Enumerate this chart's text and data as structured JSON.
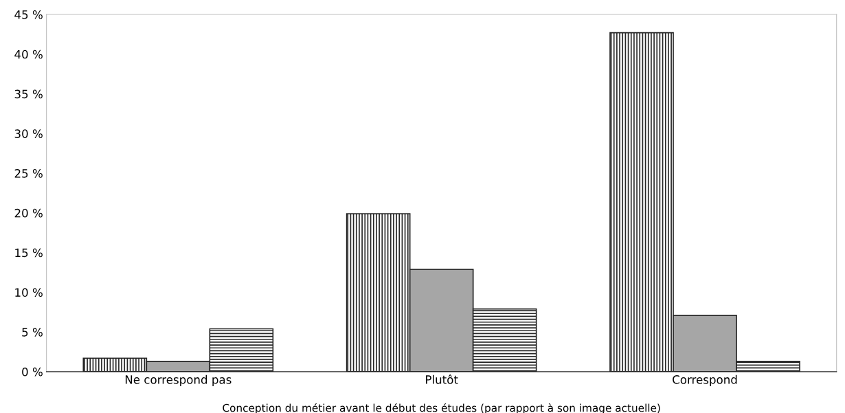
{
  "chart_data": {
    "type": "bar",
    "xlabel": "Conception du métier avant le début des études (par rapport à son image actuelle)",
    "categories": [
      "Ne correspond pas",
      "Plutôt",
      "Correspond"
    ],
    "series": [
      {
        "color": "#262626",
        "values": [
          1.7,
          19.9,
          42.7
        ]
      },
      {
        "color": "#a6a6a6",
        "values": [
          1.3,
          12.9,
          7.1
        ]
      },
      {
        "color": "#262626",
        "values": [
          5.4,
          7.9,
          1.3
        ]
      }
    ],
    "ylim": [
      0,
      45
    ],
    "yticks": [
      {
        "value": 0,
        "label": "0 %"
      },
      {
        "value": 5,
        "label": "5 %"
      },
      {
        "value": 10,
        "label": "10 %"
      },
      {
        "value": 15,
        "label": "15 %"
      },
      {
        "value": 20,
        "label": "20 %"
      },
      {
        "value": 25,
        "label": "25 %"
      },
      {
        "value": 30,
        "label": "30 %"
      },
      {
        "value": 35,
        "label": "35 %"
      },
      {
        "value": 40,
        "label": "40 %"
      },
      {
        "value": 45,
        "label": "45 %"
      }
    ],
    "grid": false,
    "legend": false
  }
}
